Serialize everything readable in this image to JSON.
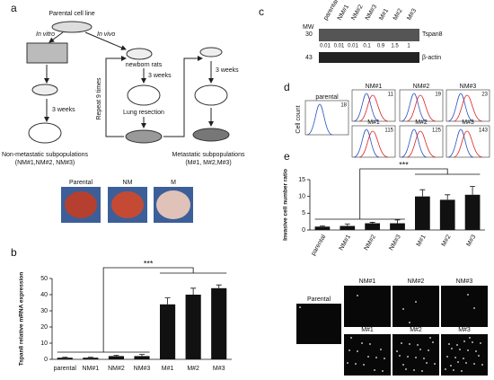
{
  "panels": {
    "a": "a",
    "b": "b",
    "c": "c",
    "d": "d",
    "e": "e"
  },
  "diagram": {
    "parental": "Parental cell line",
    "in_vitro": "In vitro",
    "in_vivo": "In vivo",
    "newborn": "newborn rats",
    "weeks": "3 weeks",
    "repeat": "Repeat 9 times",
    "resection": "Lung resection",
    "non_metastatic": "Non-metastatic subpopulations",
    "non_metastatic_ids": "(NM#1,NM#2, NM#3)",
    "metastatic": "Metastatic subpopulations",
    "metastatic_ids": "(M#1, M#2,M#3)",
    "lungs": [
      "Parental",
      "NM",
      "M"
    ]
  },
  "blot": {
    "mw_header": "MW",
    "lanes": [
      "parental",
      "NM#1",
      "NM#2",
      "NM#3",
      "M#1",
      "M#2",
      "M#3"
    ],
    "bands": [
      {
        "mw": 30,
        "name": "Tspan8"
      },
      {
        "mw": 43,
        "name": "β-actin"
      }
    ],
    "quantification": [
      0.01,
      0.01,
      0.01,
      0.1,
      0.9,
      1.5,
      1
    ]
  },
  "flow": {
    "y_label": "Cell count",
    "panels": [
      {
        "name": "parental",
        "value": 18
      },
      {
        "name": "NM#1",
        "value": 11
      },
      {
        "name": "NM#2",
        "value": 19
      },
      {
        "name": "NM#3",
        "value": 23
      },
      {
        "name": "M#1",
        "value": 115
      },
      {
        "name": "M#2",
        "value": 125
      },
      {
        "name": "M#3",
        "value": 143
      }
    ]
  },
  "images": [
    "Parental",
    "NM#1",
    "NM#2",
    "NM#3",
    "M#1",
    "M#2",
    "M#3"
  ],
  "chart_data": [
    {
      "type": "bar",
      "y_label": "Tspan8 relative mRNA expression",
      "categories": [
        "parental",
        "NM#1",
        "NM#2",
        "NM#3",
        "M#1",
        "M#2",
        "M#3"
      ],
      "values": [
        1,
        1,
        2,
        2,
        34,
        40,
        44
      ],
      "errors": [
        0.3,
        0.3,
        0.5,
        1,
        4,
        4,
        2
      ],
      "color": "#111111",
      "ylim": [
        0,
        50
      ],
      "yticks": [
        0,
        10,
        20,
        30,
        40,
        50
      ],
      "annotation": "***"
    },
    {
      "type": "bar",
      "y_label": "Invasive cell number ratio",
      "categories": [
        "parental",
        "NM#1",
        "NM#2",
        "NM#3",
        "M#1",
        "M#2",
        "M#3"
      ],
      "values": [
        1,
        1.2,
        2,
        2,
        10,
        9,
        10.5
      ],
      "errors": [
        0.2,
        0.6,
        0.3,
        1,
        2,
        1.5,
        2.5
      ],
      "color": "#111111",
      "ylim": [
        0,
        15
      ],
      "yticks": [
        0,
        5,
        10,
        15
      ],
      "annotation": "***"
    }
  ]
}
